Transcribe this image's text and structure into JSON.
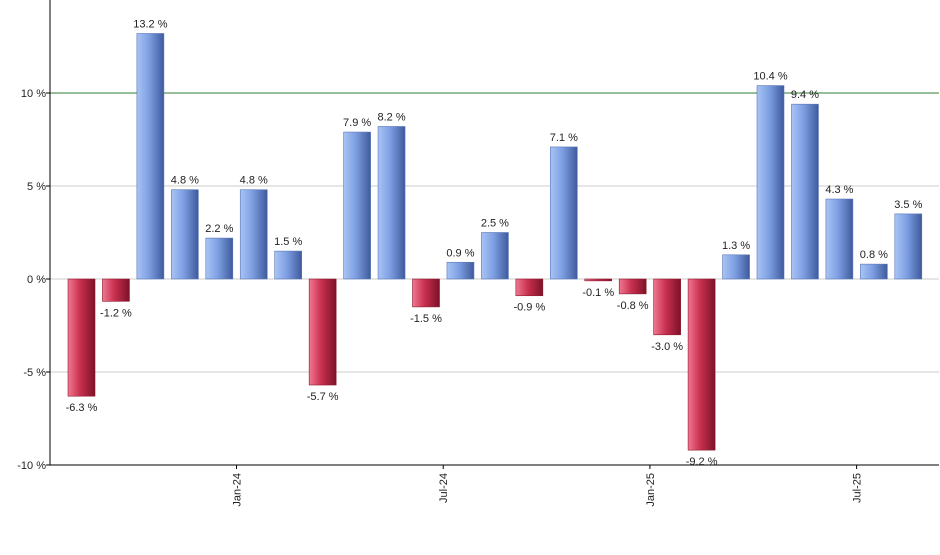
{
  "chart_data": {
    "type": "bar",
    "title": "",
    "xlabel": "",
    "ylabel": "",
    "ylim": [
      -10,
      15
    ],
    "y_ticks": [
      {
        "value": -10,
        "label": "-10 %"
      },
      {
        "value": -5,
        "label": "-5 %"
      },
      {
        "value": 0,
        "label": "0 %"
      },
      {
        "value": 5,
        "label": "5 %"
      },
      {
        "value": 10,
        "label": "10 %"
      }
    ],
    "x_ticks": [
      {
        "index": 4.5,
        "label": "Jan-24"
      },
      {
        "index": 10.5,
        "label": "Jul-24"
      },
      {
        "index": 16.5,
        "label": "Jan-25"
      },
      {
        "index": 22.5,
        "label": "Jul-25"
      }
    ],
    "values": [
      -6.3,
      -1.2,
      13.2,
      4.8,
      2.2,
      4.8,
      1.5,
      -5.7,
      7.9,
      8.2,
      -1.5,
      0.9,
      2.5,
      -0.9,
      7.1,
      -0.1,
      -0.8,
      -3.0,
      -9.2,
      1.3,
      10.4,
      9.4,
      4.3,
      0.8,
      3.5
    ],
    "value_labels": [
      "-6.3 %",
      "-1.2 %",
      "13.2 %",
      "4.8 %",
      "2.2 %",
      "4.8 %",
      "1.5 %",
      "-5.7 %",
      "7.9 %",
      "8.2 %",
      "-1.5 %",
      "0.9 %",
      "2.5 %",
      "-0.9 %",
      "7.1 %",
      "-0.1 %",
      "-0.8 %",
      "-3.0 %",
      "-9.2 %",
      "1.3 %",
      "10.4 %",
      "9.4 %",
      "4.3 %",
      "0.8 %",
      "3.5 %"
    ],
    "reference_line": {
      "value": 10,
      "color": "#2e7d32"
    },
    "grid": true,
    "legend": "none",
    "colors": {
      "positive": "#7a9ee0",
      "negative": "#c8304f",
      "grid": "#cccccc",
      "axis": "#000000"
    }
  }
}
